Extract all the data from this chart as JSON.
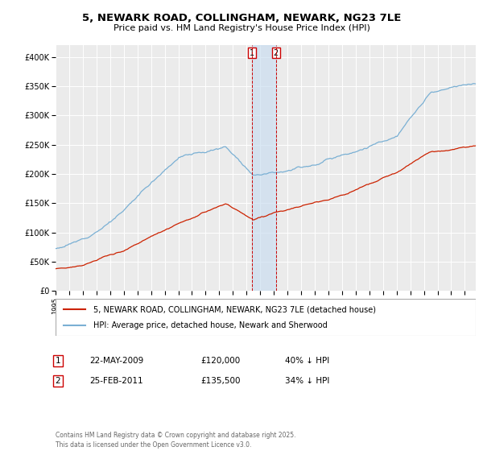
{
  "title": "5, NEWARK ROAD, COLLINGHAM, NEWARK, NG23 7LE",
  "subtitle": "Price paid vs. HM Land Registry's House Price Index (HPI)",
  "red_label": "5, NEWARK ROAD, COLLINGHAM, NEWARK, NG23 7LE (detached house)",
  "blue_label": "HPI: Average price, detached house, Newark and Sherwood",
  "sale1_date": "22-MAY-2009",
  "sale1_price": "£120,000",
  "sale1_hpi": "40% ↓ HPI",
  "sale2_date": "25-FEB-2011",
  "sale2_price": "£135,500",
  "sale2_hpi": "34% ↓ HPI",
  "footer": "Contains HM Land Registry data © Crown copyright and database right 2025.\nThis data is licensed under the Open Government Licence v3.0.",
  "sale1_x": 2009.39,
  "sale2_x": 2011.15,
  "background_color": "#ffffff",
  "plot_bg_color": "#ebebeb",
  "blue_color": "#7ab0d4",
  "red_color": "#cc2200",
  "ylim_min": 0,
  "ylim_max": 420000,
  "xlim_min": 1995,
  "xlim_max": 2025.8
}
